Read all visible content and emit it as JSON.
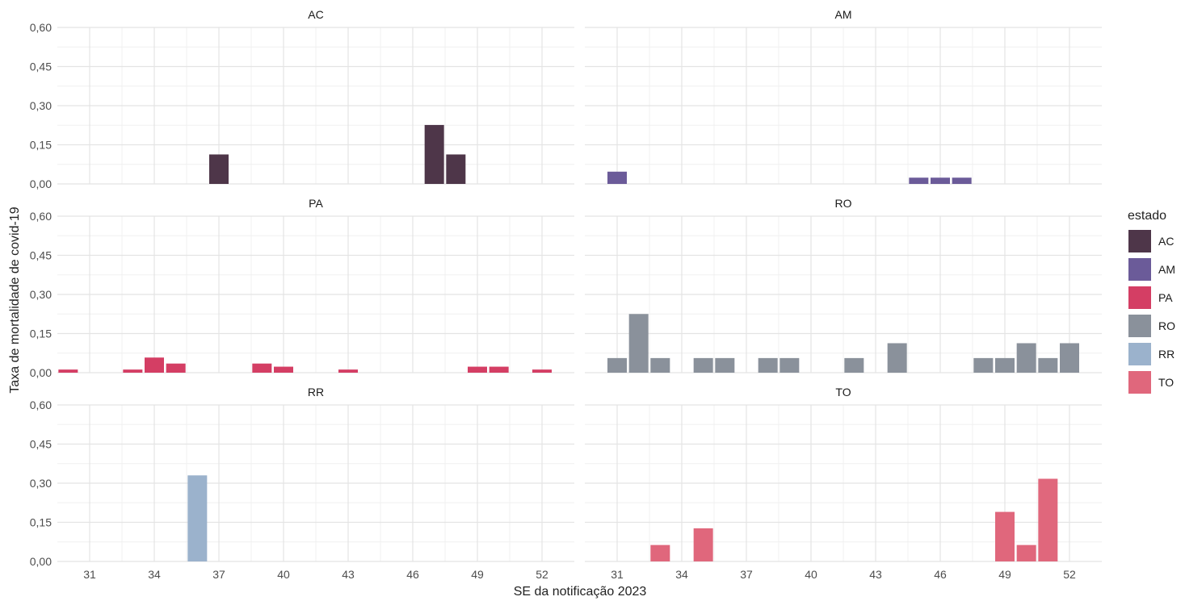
{
  "chart_data": {
    "type": "bar",
    "xlabel": "SE da notificação 2023",
    "ylabel": "Taxa de mortalidade de covid-19",
    "ylim": [
      0,
      0.6
    ],
    "xlim": [
      29.5,
      53.5
    ],
    "x_ticks": [
      31,
      34,
      37,
      40,
      43,
      46,
      49,
      52
    ],
    "y_ticks": [
      {
        "value": 0,
        "label": "0,00"
      },
      {
        "value": 0.15,
        "label": "0,15"
      },
      {
        "value": 0.3,
        "label": "0,30"
      },
      {
        "value": 0.45,
        "label": "0,45"
      },
      {
        "value": 0.6,
        "label": "0,60"
      }
    ],
    "grid": true,
    "legend": {
      "title": "estado",
      "placement": "right",
      "entries": [
        {
          "label": "AC",
          "color": "#4e3649"
        },
        {
          "label": "AM",
          "color": "#6b5b99"
        },
        {
          "label": "PA",
          "color": "#d43e64"
        },
        {
          "label": "RO",
          "color": "#8a919b"
        },
        {
          "label": "RR",
          "color": "#9bb2cc"
        },
        {
          "label": "TO",
          "color": "#e0677c"
        }
      ]
    },
    "facets": [
      {
        "name": "AC",
        "color": "#4e3649",
        "points": [
          {
            "x": 37,
            "y": 0.113
          },
          {
            "x": 47,
            "y": 0.226
          },
          {
            "x": 48,
            "y": 0.113
          }
        ]
      },
      {
        "name": "AM",
        "color": "#6b5b99",
        "points": [
          {
            "x": 31,
            "y": 0.047
          },
          {
            "x": 45,
            "y": 0.024
          },
          {
            "x": 46,
            "y": 0.024
          },
          {
            "x": 47,
            "y": 0.024
          }
        ]
      },
      {
        "name": "PA",
        "color": "#d43e64",
        "points": [
          {
            "x": 30,
            "y": 0.012
          },
          {
            "x": 33,
            "y": 0.012
          },
          {
            "x": 34,
            "y": 0.058
          },
          {
            "x": 35,
            "y": 0.035
          },
          {
            "x": 39,
            "y": 0.035
          },
          {
            "x": 40,
            "y": 0.023
          },
          {
            "x": 43,
            "y": 0.012
          },
          {
            "x": 49,
            "y": 0.023
          },
          {
            "x": 50,
            "y": 0.023
          },
          {
            "x": 52,
            "y": 0.012
          }
        ]
      },
      {
        "name": "RO",
        "color": "#8a919b",
        "points": [
          {
            "x": 31,
            "y": 0.056
          },
          {
            "x": 32,
            "y": 0.225
          },
          {
            "x": 33,
            "y": 0.056
          },
          {
            "x": 35,
            "y": 0.056
          },
          {
            "x": 36,
            "y": 0.056
          },
          {
            "x": 38,
            "y": 0.056
          },
          {
            "x": 39,
            "y": 0.056
          },
          {
            "x": 42,
            "y": 0.056
          },
          {
            "x": 44,
            "y": 0.113
          },
          {
            "x": 48,
            "y": 0.056
          },
          {
            "x": 49,
            "y": 0.056
          },
          {
            "x": 50,
            "y": 0.113
          },
          {
            "x": 51,
            "y": 0.056
          },
          {
            "x": 52,
            "y": 0.113
          }
        ]
      },
      {
        "name": "RR",
        "color": "#9bb2cc",
        "points": [
          {
            "x": 36,
            "y": 0.33
          }
        ]
      },
      {
        "name": "TO",
        "color": "#e0677c",
        "points": [
          {
            "x": 33,
            "y": 0.063
          },
          {
            "x": 35,
            "y": 0.127
          },
          {
            "x": 49,
            "y": 0.19
          },
          {
            "x": 50,
            "y": 0.063
          },
          {
            "x": 51,
            "y": 0.317
          }
        ]
      }
    ]
  }
}
